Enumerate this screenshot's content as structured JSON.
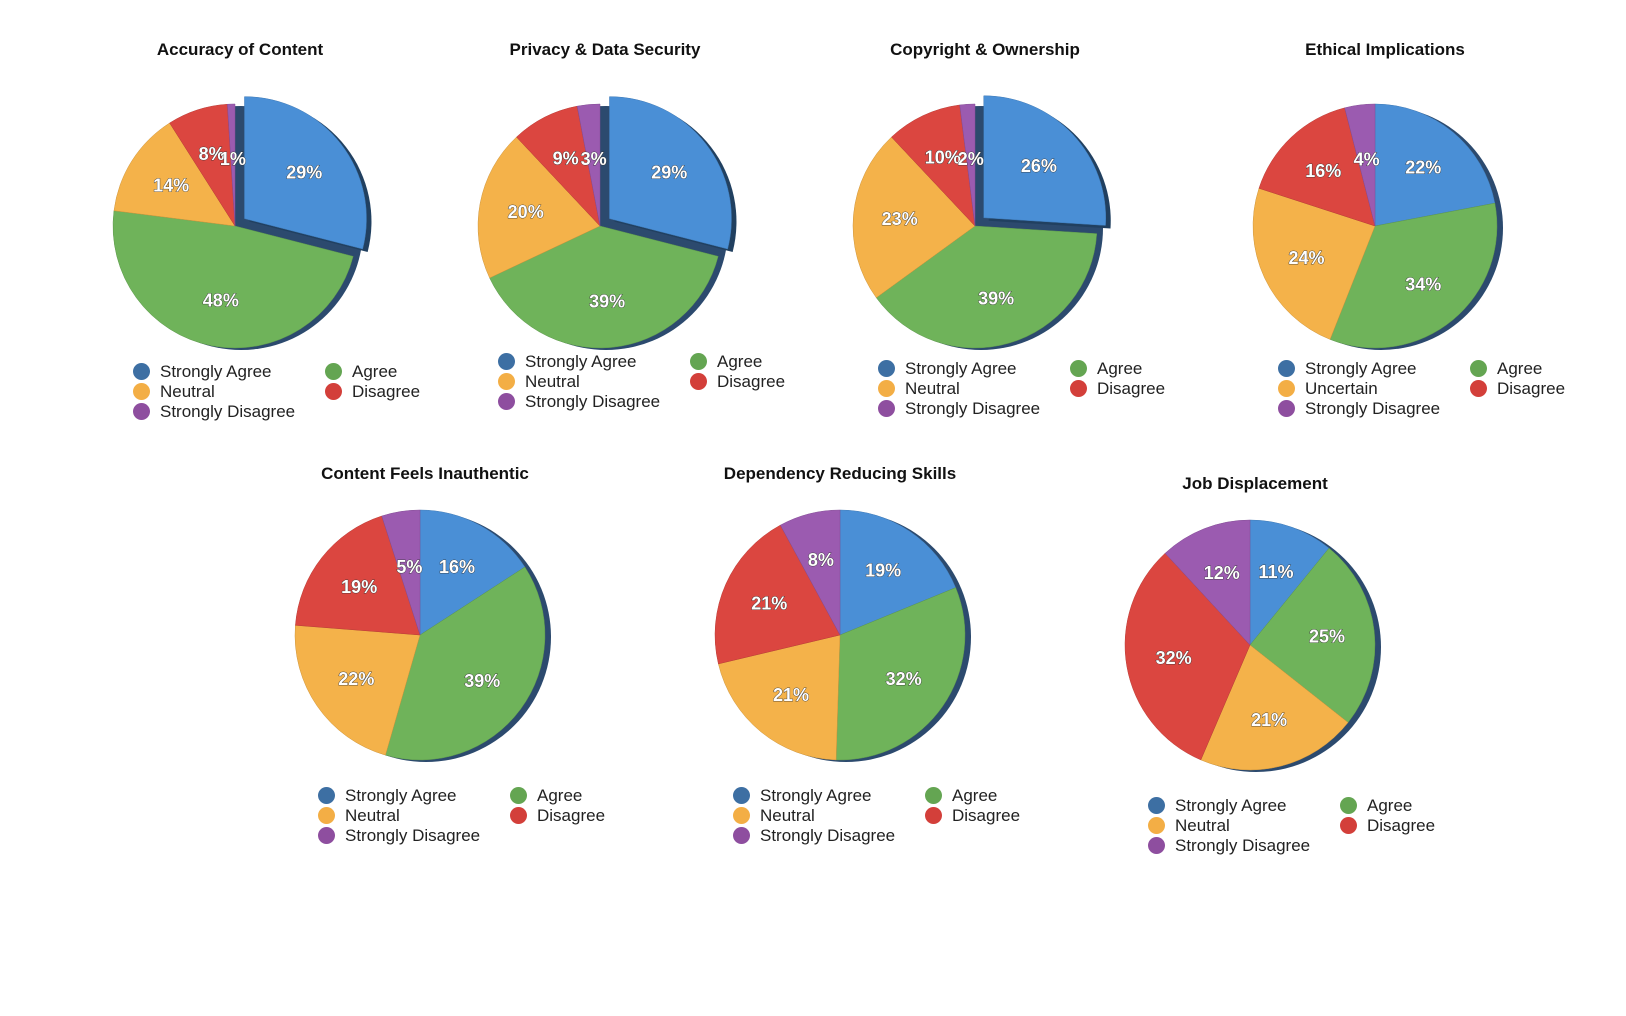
{
  "colors": {
    "strongly_agree": "#4a8fd6",
    "agree": "#6fb35a",
    "neutral": "#f4b24a",
    "disagree": "#db4640",
    "strongly_disagree": "#9b5bb0",
    "strongly_agree_dot": "#3d6fa3",
    "agree_dot": "#64a552",
    "neutral_dot": "#f3ae45",
    "disagree_dot": "#d33f3a",
    "strongly_disagree_dot": "#8e4e9f"
  },
  "chart_data": [
    {
      "type": "pie",
      "title": "Accuracy of Content",
      "legend_position": "bottom",
      "slices": [
        {
          "label": "Strongly Agree",
          "value": 29,
          "text": "29%",
          "key": "strongly_agree",
          "exploded": true
        },
        {
          "label": "Agree",
          "value": 48,
          "text": "48%",
          "key": "agree"
        },
        {
          "label": "Neutral",
          "value": 14,
          "text": "14%",
          "key": "neutral"
        },
        {
          "label": "Disagree",
          "value": 8,
          "text": "8%",
          "key": "disagree"
        },
        {
          "label": "Strongly Disagree",
          "value": 1,
          "text": "1%",
          "key": "strongly_disagree"
        }
      ],
      "legend": [
        "Strongly Agree",
        "Agree",
        "Neutral",
        "Disagree",
        "Strongly Disagree"
      ]
    },
    {
      "type": "pie",
      "title": "Privacy & Data Security",
      "legend_position": "bottom",
      "slices": [
        {
          "label": "Strongly Agree",
          "value": 29,
          "text": "29%",
          "key": "strongly_agree",
          "exploded": true
        },
        {
          "label": "Agree",
          "value": 39,
          "text": "39%",
          "key": "agree"
        },
        {
          "label": "Neutral",
          "value": 20,
          "text": "20%",
          "key": "neutral"
        },
        {
          "label": "Disagree",
          "value": 9,
          "text": "9%",
          "key": "disagree"
        },
        {
          "label": "Strongly Disagree",
          "value": 3,
          "text": "3%",
          "key": "strongly_disagree"
        }
      ],
      "legend": [
        "Strongly Agree",
        "Agree",
        "Neutral",
        "Disagree",
        "Strongly Disagree"
      ]
    },
    {
      "type": "pie",
      "title": "Copyright & Ownership",
      "legend_position": "bottom",
      "slices": [
        {
          "label": "Strongly Agree",
          "value": 26,
          "text": "26%",
          "key": "strongly_agree",
          "exploded": true
        },
        {
          "label": "Agree",
          "value": 39,
          "text": "39%",
          "key": "agree"
        },
        {
          "label": "Neutral",
          "value": 23,
          "text": "23%",
          "key": "neutral"
        },
        {
          "label": "Disagree",
          "value": 10,
          "text": "10%",
          "key": "disagree"
        },
        {
          "label": "Strongly Disagree",
          "value": 2,
          "text": "2%",
          "key": "strongly_disagree"
        }
      ],
      "legend": [
        "Strongly Agree",
        "Agree",
        "Neutral",
        "Disagree",
        "Strongly Disagree"
      ]
    },
    {
      "type": "pie",
      "title": "Ethical Implications",
      "legend_position": "bottom",
      "slices": [
        {
          "label": "Strongly Agree",
          "value": 22,
          "text": "22%",
          "key": "strongly_agree"
        },
        {
          "label": "Agree",
          "value": 34,
          "text": "34%",
          "key": "agree"
        },
        {
          "label": "Uncertain",
          "value": 24,
          "text": "24%",
          "key": "neutral"
        },
        {
          "label": "Disagree",
          "value": 16,
          "text": "16%",
          "key": "disagree"
        },
        {
          "label": "Strongly Disagree",
          "value": 4,
          "text": "4%",
          "key": "strongly_disagree"
        }
      ],
      "legend": [
        "Strongly Agree",
        "Agree",
        "Uncertain",
        "Disagree",
        "Strongly Disagree"
      ]
    },
    {
      "type": "pie",
      "title": "Content Feels Inauthentic",
      "legend_position": "bottom",
      "slices": [
        {
          "label": "Strongly Agree",
          "value": 16,
          "text": "16%",
          "key": "strongly_agree"
        },
        {
          "label": "Agree",
          "value": 39,
          "text": "39%",
          "key": "agree"
        },
        {
          "label": "Neutral",
          "value": 22,
          "text": "22%",
          "key": "neutral"
        },
        {
          "label": "Disagree",
          "value": 19,
          "text": "19%",
          "key": "disagree"
        },
        {
          "label": "Strongly Disagree",
          "value": 5,
          "text": "5%",
          "key": "strongly_disagree"
        }
      ],
      "legend": [
        "Strongly Agree",
        "Agree",
        "Neutral",
        "Disagree",
        "Strongly Disagree"
      ]
    },
    {
      "type": "pie",
      "title": "Dependency Reducing Skills",
      "legend_position": "bottom",
      "slices": [
        {
          "label": "Strongly Agree",
          "value": 19,
          "text": "19%",
          "key": "strongly_agree"
        },
        {
          "label": "Agree",
          "value": 32,
          "text": "32%",
          "key": "agree"
        },
        {
          "label": "Neutral",
          "value": 21,
          "text": "21%",
          "key": "neutral"
        },
        {
          "label": "Disagree",
          "value": 21,
          "text": "21%",
          "key": "disagree"
        },
        {
          "label": "Strongly Disagree",
          "value": 8,
          "text": "8%",
          "key": "strongly_disagree"
        }
      ],
      "legend": [
        "Strongly Agree",
        "Agree",
        "Neutral",
        "Disagree",
        "Strongly Disagree"
      ]
    },
    {
      "type": "pie",
      "title": "Job Displacement",
      "legend_position": "bottom",
      "slices": [
        {
          "label": "Strongly Agree",
          "value": 11,
          "text": "11%",
          "key": "strongly_agree"
        },
        {
          "label": "Agree",
          "value": 25,
          "text": "25%",
          "key": "agree"
        },
        {
          "label": "Neutral",
          "value": 21,
          "text": "21%",
          "key": "neutral"
        },
        {
          "label": "Disagree",
          "value": 32,
          "text": "32%",
          "key": "disagree"
        },
        {
          "label": "Strongly Disagree",
          "value": 12,
          "text": "12%",
          "key": "strongly_disagree"
        }
      ],
      "legend": [
        "Strongly Agree",
        "Agree",
        "Neutral",
        "Disagree",
        "Strongly Disagree"
      ]
    }
  ]
}
